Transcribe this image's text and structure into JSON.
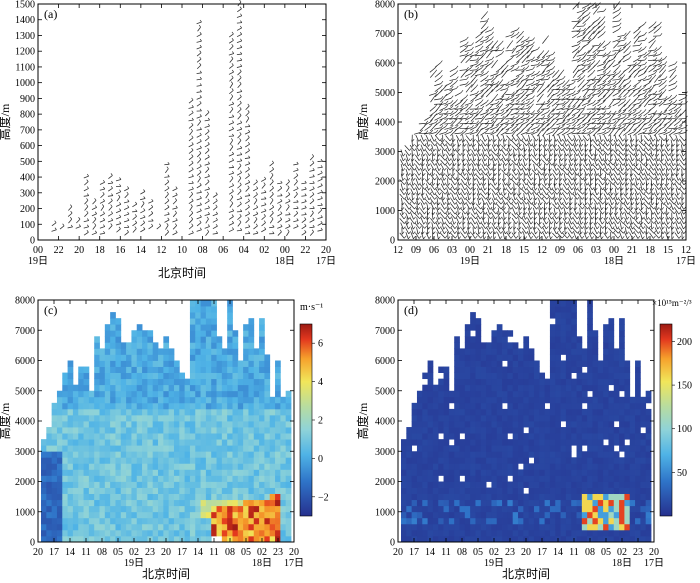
{
  "chart_data": [
    {
      "panel_label": "(a)",
      "type": "scatter",
      "ylabel": "高度/m",
      "xlabel": "北京时间",
      "ylim": [
        0,
        1500
      ],
      "yticks": [
        "0",
        "100",
        "200",
        "300",
        "400",
        "500",
        "600",
        "700",
        "800",
        "900",
        "1000",
        "1100",
        "1200",
        "1300",
        "1400",
        "1500"
      ],
      "xticks": [
        "00",
        "22",
        "20",
        "18",
        "16",
        "14",
        "12",
        "10",
        "08",
        "06",
        "04",
        "02",
        "00",
        "22",
        "20"
      ],
      "date_labels": [
        {
          "label": "19日",
          "tick": 0
        },
        {
          "label": "18日",
          "tick": 12
        },
        {
          "label": "17日",
          "tick": 14
        }
      ],
      "profile_tops_m": [
        100,
        110,
        230,
        120,
        420,
        270,
        390,
        420,
        380,
        330,
        240,
        330,
        260,
        80,
        500,
        350,
        0,
        900,
        1400,
        820,
        300,
        0,
        1300,
        1500,
        860,
        390,
        380,
        500,
        360,
        390,
        500,
        360,
        520,
        520
      ]
    },
    {
      "panel_label": "(b)",
      "type": "scatter",
      "ylabel": "高度/m",
      "xlabel": "",
      "ylim": [
        0,
        8000
      ],
      "yticks": [
        "0",
        "1000",
        "2000",
        "3000",
        "4000",
        "5000",
        "6000",
        "7000",
        "8000"
      ],
      "xticks": [
        "12",
        "09",
        "06",
        "03",
        "00",
        "21",
        "18",
        "15",
        "12",
        "09",
        "06",
        "03",
        "00",
        "21",
        "18",
        "15",
        "12"
      ],
      "date_labels": [
        {
          "label": "19日",
          "tick": 4
        },
        {
          "label": "18日",
          "tick": 12
        },
        {
          "label": "17日",
          "tick": 16
        }
      ]
    },
    {
      "panel_label": "(c)",
      "type": "heatmap",
      "ylabel": "高度/m",
      "xlabel": "北京时间",
      "ylim": [
        0,
        8000
      ],
      "yticks": [
        "0",
        "1000",
        "2000",
        "3000",
        "4000",
        "5000",
        "6000",
        "7000",
        "8000"
      ],
      "xticks": [
        "20",
        "17",
        "14",
        "11",
        "08",
        "05",
        "02",
        "23",
        "20",
        "17",
        "14",
        "11",
        "08",
        "05",
        "02",
        "23",
        "20"
      ],
      "date_labels": [
        {
          "label": "19日",
          "tick": 6
        },
        {
          "label": "18日",
          "tick": 14
        },
        {
          "label": "17日",
          "tick": 16
        }
      ],
      "colorbar": {
        "title": "m·s⁻¹",
        "ticks": [
          "6",
          "4",
          "2",
          "0",
          "−2"
        ],
        "range": [
          -3,
          7
        ]
      },
      "column_tops_m": [
        3300,
        3700,
        4600,
        5000,
        5500,
        6000,
        5200,
        5700,
        5800,
        5000,
        6800,
        6300,
        7200,
        7600,
        7400,
        6600,
        6600,
        7000,
        7100,
        7000,
        6900,
        6500,
        6300,
        6800,
        6300,
        5900,
        5600,
        5400,
        8000,
        8000,
        8000,
        8000,
        8000,
        6700,
        6300,
        8000,
        7000,
        6000,
        7100,
        7300,
        6300,
        7300,
        6200,
        4800,
        6000,
        4700,
        5000
      ]
    },
    {
      "panel_label": "(d)",
      "type": "heatmap",
      "ylabel": "高度/m",
      "xlabel": "北京时间",
      "ylim": [
        0,
        8000
      ],
      "yticks": [
        "0",
        "1000",
        "2000",
        "3000",
        "4000",
        "5000",
        "6000",
        "7000",
        "8000"
      ],
      "xticks": [
        "20",
        "17",
        "14",
        "11",
        "08",
        "05",
        "02",
        "23",
        "20",
        "17",
        "14",
        "11",
        "08",
        "05",
        "02",
        "23",
        "20"
      ],
      "date_labels": [
        {
          "label": "19日",
          "tick": 6
        },
        {
          "label": "18日",
          "tick": 14
        },
        {
          "label": "17日",
          "tick": 16
        }
      ],
      "colorbar": {
        "title": "×10¹⁵m⁻²/³",
        "ticks": [
          "200",
          "150",
          "100",
          "50"
        ],
        "range": [
          0,
          220
        ]
      },
      "column_tops_m": [
        3300,
        3700,
        4600,
        5000,
        5500,
        6000,
        5200,
        5700,
        5800,
        5000,
        6800,
        6300,
        7200,
        7600,
        7400,
        6600,
        6600,
        7000,
        7100,
        7000,
        6900,
        6500,
        6300,
        6800,
        6300,
        5900,
        5600,
        5400,
        8000,
        8000,
        8000,
        8000,
        8000,
        6700,
        6300,
        8000,
        7000,
        6000,
        7100,
        7300,
        6300,
        7300,
        6200,
        4800,
        6000,
        4700,
        5000
      ]
    }
  ]
}
